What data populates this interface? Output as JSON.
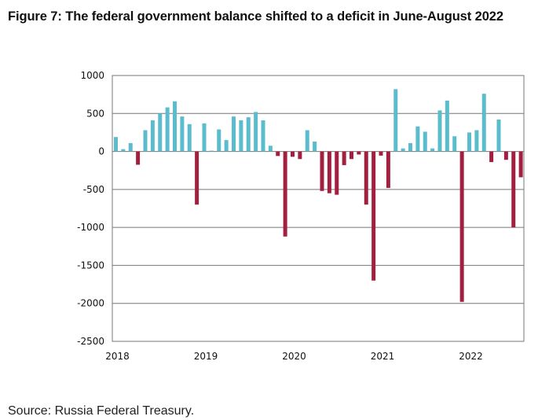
{
  "title": "Figure 7: The federal government balance shifted to a deficit in June-August 2022",
  "source": "Source: Russia Federal Treasury.",
  "colors": {
    "positive": "#5bbccd",
    "negative": "#a31f3f",
    "grid": "#777777"
  },
  "chart_data": {
    "type": "bar",
    "title": "Figure 7: The federal government balance shifted to a deficit in June-August 2022",
    "xlabel": "",
    "ylabel": "",
    "ylim": [
      -2500,
      1000
    ],
    "yticks": [
      1000,
      500,
      0,
      -500,
      -1000,
      -1500,
      -2000,
      -2500
    ],
    "ytick_labels": [
      "1000",
      "500",
      "0",
      "-500",
      "-1000",
      "-1500",
      "-2000",
      "-2500"
    ],
    "xtick_labels": [
      "2018",
      "2019",
      "2020",
      "2021",
      "2022"
    ],
    "grid": true,
    "legend": "none",
    "frequency": "monthly",
    "start": "2018-01",
    "categories": [
      "2018-01",
      "2018-02",
      "2018-03",
      "2018-04",
      "2018-05",
      "2018-06",
      "2018-07",
      "2018-08",
      "2018-09",
      "2018-10",
      "2018-11",
      "2018-12",
      "2019-01",
      "2019-02",
      "2019-03",
      "2019-04",
      "2019-05",
      "2019-06",
      "2019-07",
      "2019-08",
      "2019-09",
      "2019-10",
      "2019-11",
      "2019-12",
      "2020-01",
      "2020-02",
      "2020-03",
      "2020-04",
      "2020-05",
      "2020-06",
      "2020-07",
      "2020-08",
      "2020-09",
      "2020-10",
      "2020-11",
      "2020-12",
      "2021-01",
      "2021-02",
      "2021-03",
      "2021-04",
      "2021-05",
      "2021-06",
      "2021-07",
      "2021-08",
      "2021-09",
      "2021-10",
      "2021-11",
      "2021-12",
      "2022-01",
      "2022-02",
      "2022-03",
      "2022-04",
      "2022-05",
      "2022-06",
      "2022-07",
      "2022-08"
    ],
    "values": [
      190,
      30,
      110,
      -175,
      280,
      410,
      500,
      580,
      660,
      460,
      360,
      -700,
      370,
      10,
      290,
      150,
      460,
      410,
      450,
      520,
      410,
      75,
      -60,
      -1120,
      -70,
      -100,
      280,
      130,
      -520,
      -550,
      -570,
      -180,
      -100,
      -40,
      -700,
      -1700,
      -55,
      -480,
      820,
      40,
      110,
      330,
      260,
      40,
      540,
      670,
      200,
      -1980,
      250,
      280,
      760,
      -140,
      420,
      -110,
      -1000,
      -340
    ]
  }
}
